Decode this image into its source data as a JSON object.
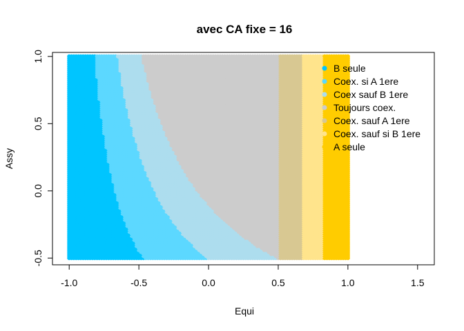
{
  "chart_data": {
    "type": "scatter",
    "title": "avec CA fixe = 16",
    "xlabel": "Equi",
    "ylabel": "Assy",
    "xlim": [
      -1.12,
      1.62
    ],
    "ylim": [
      -0.55,
      1.03
    ],
    "x_ticks": [
      -1.0,
      -0.5,
      0.0,
      0.5,
      1.0,
      1.5
    ],
    "x_tick_labels": [
      "-1.0",
      "-0.5",
      "0.0",
      "0.5",
      "1.0",
      "1.5"
    ],
    "y_ticks": [
      -0.5,
      0.0,
      0.5,
      1.0
    ],
    "y_tick_labels": [
      "-0.5",
      "0.0",
      "0.5",
      "1.0"
    ],
    "grid": false,
    "legend_position": "top-right",
    "grid_domain": {
      "x_range": [
        -1.0,
        1.0
      ],
      "y_range": [
        -0.5,
        1.0
      ]
    },
    "series": [
      {
        "name": "B seule",
        "color": "#00C5FF"
      },
      {
        "name": "Coex. si A 1ere",
        "color": "#5CD8FF"
      },
      {
        "name": "Coex sauf B 1ere",
        "color": "#ADDDEE"
      },
      {
        "name": "Toujours coex.",
        "color": "#CCCCCC"
      },
      {
        "name": "Coex. sauf A 1ere",
        "color": "#D8C892"
      },
      {
        "name": "Coex. sauf si B 1ere",
        "color": "#FFE48C"
      },
      {
        "name": "A seule",
        "color": "#FFCC00"
      }
    ],
    "regions": [
      {
        "series": "B seule",
        "rule": "(1+x)(1.3+y) < 0.43"
      },
      {
        "series": "Coex. si A 1ere",
        "rule": "0.43 <= (1+x)(1.3+y) < 0.80"
      },
      {
        "series": "Coex sauf B 1ere",
        "rule": "0.80 <= (1+x)(1.3+y) < 1.20"
      },
      {
        "series": "Toujours coex.",
        "rule": "x < 0.51, otherwise"
      },
      {
        "series": "Coex. sauf A 1ere",
        "rule": "0.51 <= x < 0.67"
      },
      {
        "series": "Coex. sauf si B 1ere",
        "rule": "0.67 <= x < 0.83"
      },
      {
        "series": "A seule",
        "rule": "x >= 0.83"
      }
    ]
  }
}
